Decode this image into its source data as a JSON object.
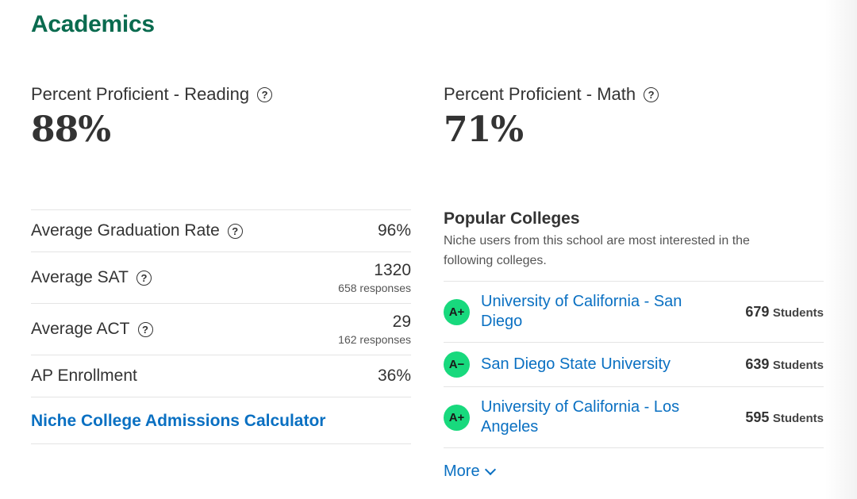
{
  "section": {
    "title": "Academics"
  },
  "reading": {
    "label": "Percent Proficient - Reading",
    "value": "88%"
  },
  "math": {
    "label": "Percent Proficient - Math",
    "value": "71%"
  },
  "metrics": [
    {
      "label": "Average Graduation Rate",
      "value": "96%",
      "sub": ""
    },
    {
      "label": "Average SAT",
      "value": "1320",
      "sub": "658 responses"
    },
    {
      "label": "Average ACT",
      "value": "29",
      "sub": "162 responses"
    },
    {
      "label": "AP Enrollment",
      "value": "36%",
      "sub": ""
    }
  ],
  "calculator": {
    "label": "Niche College Admissions Calculator"
  },
  "popular_colleges": {
    "heading": "Popular Colleges",
    "description": "Niche users from this school are most interested in the following colleges.",
    "items": [
      {
        "grade": "A+",
        "name": "University of California - San Diego",
        "count": "679",
        "unit": "Students"
      },
      {
        "grade": "A−",
        "name": "San Diego State University",
        "count": "639",
        "unit": "Students"
      },
      {
        "grade": "A+",
        "name": "University of California - Los Angeles",
        "count": "595",
        "unit": "Students"
      }
    ],
    "more_label": "More"
  },
  "icons": {
    "help": "help-circle-icon",
    "more": "chevron-down-icon"
  },
  "colors": {
    "accent_green": "#0a6b4f",
    "link_blue": "#0a70c2",
    "grade_green": "#18d97d"
  }
}
